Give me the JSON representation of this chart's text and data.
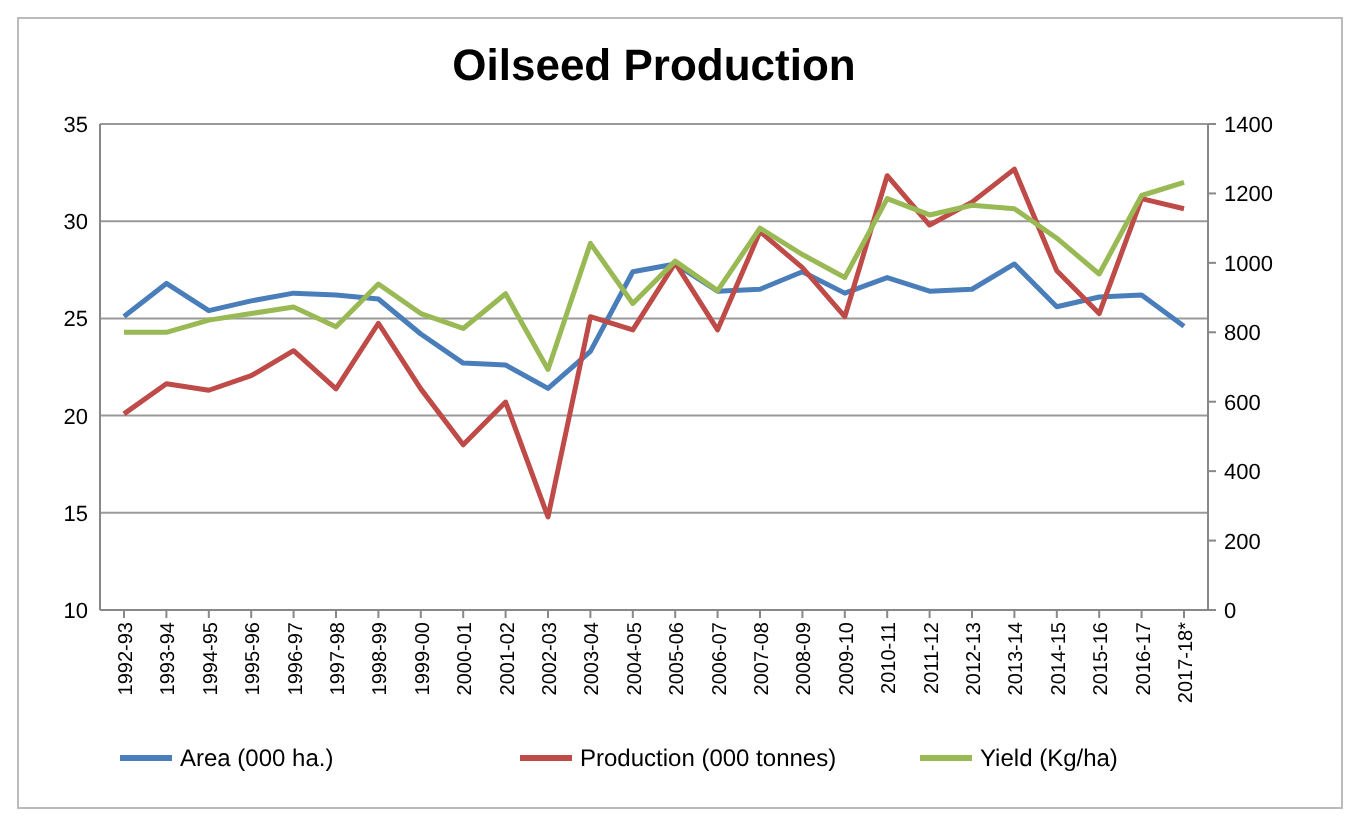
{
  "chart_data": {
    "type": "line",
    "title": "Oilseed Production",
    "categories": [
      "1992-93",
      "1993-94",
      "1994-95",
      "1995-96",
      "1996-97",
      "1997-98",
      "1998-99",
      "1999-00",
      "2000-01",
      "2001-02",
      "2002-03",
      "2003-04",
      "2004-05",
      "2005-06",
      "2006-07",
      "2007-08",
      "2008-09",
      "2009-10",
      "2010-11",
      "2011-12",
      "2012-13",
      "2013-14",
      "2014-15",
      "2015-16",
      "2016-17",
      "2017-18*"
    ],
    "series": [
      {
        "name": "Area (000 ha.)",
        "color": "#4a7ebb",
        "values": [
          25.1,
          26.8,
          25.4,
          25.9,
          26.3,
          26.2,
          26.0,
          24.2,
          22.7,
          22.6,
          21.4,
          23.3,
          27.4,
          27.8,
          26.4,
          26.5,
          27.4,
          26.3,
          27.1,
          26.4,
          26.5,
          27.8,
          25.6,
          26.1,
          26.2,
          24.6
        ]
      },
      {
        "name": "Production (000 tonnes)",
        "color": "#be4b48",
        "axis": "y2",
        "values": [
          565,
          652,
          633,
          675,
          747,
          637,
          826,
          637,
          476,
          599,
          268,
          845,
          807,
          1000,
          807,
          1090,
          986,
          845,
          1251,
          1109,
          1175,
          1270,
          977,
          854,
          1185,
          1156
        ]
      },
      {
        "name": "Yield (Kg/ha)",
        "color": "#98b954",
        "axis": "y2",
        "values": [
          800,
          800,
          835,
          854,
          873,
          816,
          939,
          854,
          811,
          911,
          693,
          1056,
          883,
          1005,
          920,
          1100,
          1024,
          958,
          1185,
          1138,
          1166,
          1156,
          1071,
          968,
          1194,
          1232
        ]
      }
    ],
    "ylim": [
      10,
      35
    ],
    "yticks": [
      10,
      15,
      20,
      25,
      30,
      35
    ],
    "y2lim": [
      0,
      1400
    ],
    "y2ticks": [
      0,
      200,
      400,
      600,
      800,
      1000,
      1200,
      1400
    ],
    "grid": "y",
    "legend": "bottom",
    "marker": "none",
    "line_style": "solid"
  }
}
